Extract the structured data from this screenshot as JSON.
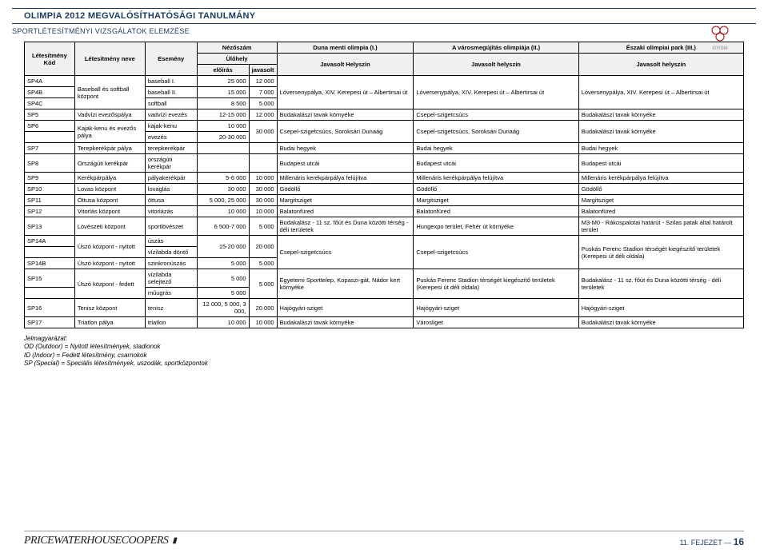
{
  "header": {
    "title": "OLIMPIA 2012 MEGVALÓSÍTHATÓSÁGI TANULMÁNY",
    "subtitle": "SPORTLÉTESÍTMÉNYI VIZSGÁLATOK ELEMZÉSE",
    "logo_label": "GYISM"
  },
  "table": {
    "headers": {
      "col0": "Létesítmény Kód",
      "col1": "Létesítmény neve",
      "col2": "Esemény",
      "nezo": "Nézőszám",
      "ulo": "Ülőhely",
      "eloiras": "előírás",
      "javasolt": "javasolt",
      "duna": "Duna menti olimpia (I.)",
      "varos": "A városmegújítás olimpiája (II.)",
      "eszak": "Északi olimpiai park (III.)",
      "jav_hely": "Javasolt Helyszín",
      "jav_helyszin": "Javasolt helyszín"
    },
    "rows": [
      {
        "kod": "SP4A",
        "nev": "Baseball és softball központ",
        "esemeny": "baseball I.",
        "eloiras": "25 000",
        "javasolt": "12 000",
        "duna": "Lóversenypálya, XIV. Kerepesi út – Albertirsai út",
        "varos": "Lóversenypálya, XIV. Kerepesi út – Albertirsai út",
        "eszak": "Lóversenypálya, XIV. Kerepesi út – Albertirsai út",
        "span_nev": 3,
        "span_loc": 3
      },
      {
        "kod": "SP4B",
        "esemeny": "baseball II.",
        "eloiras": "15 000",
        "javasolt": "7 000"
      },
      {
        "kod": "SP4C",
        "esemeny": "softball",
        "eloiras": "8 500",
        "javasolt": "5 000"
      },
      {
        "kod": "SP5",
        "nev": "Vadvízi evezőspálya",
        "esemeny": "vadvízi evezés",
        "eloiras": "12-15 000",
        "javasolt": "12 000",
        "duna": "Budakalászi tavak környéke",
        "varos": "Csepel-szigetcsúcs",
        "eszak": "Budakalászi tavak környéke"
      },
      {
        "kod": "SP6",
        "nev": "Kajak-kenu és evezős pálya",
        "esemeny": "kajak-kenu",
        "eloiras": "10 000",
        "javasolt": "30 000",
        "duna": "Csepel-szigetcsúcs, Soroksári Dunaág",
        "varos": "Csepel-szigetcsúcs, Soroksári Dunaág",
        "eszak": "Budakalászi tavak környéke",
        "span_nev": 2,
        "span_jav": 2,
        "span_loc": 2
      },
      {
        "kod": "",
        "esemeny": "evezés",
        "eloiras": "20-30 000"
      },
      {
        "kod": "SP7",
        "nev": "Terepkerékpár pálya",
        "esemeny": "terepkerékpár",
        "eloiras": "",
        "javasolt": "",
        "duna": "Budai hegyek",
        "varos": "Budai hegyek",
        "eszak": "Budai hegyek"
      },
      {
        "kod": "SP8",
        "nev": "Országúti kerékpár",
        "esemeny": "országúti kerékpár",
        "eloiras": "",
        "javasolt": "",
        "duna": "Budapest utcái",
        "varos": "Budapest utcái",
        "eszak": "Budapest utcái"
      },
      {
        "kod": "SP9",
        "nev": "Kerékpárpálya",
        "esemeny": "pályakerékpár",
        "eloiras": "5-6 000",
        "javasolt": "10 000",
        "duna": "Millenáris kerékpárpálya felújítva",
        "varos": "Millenáris kerékpárpálya felújítva",
        "eszak": "Millenáris kerékpárpálya felújítva"
      },
      {
        "kod": "SP10",
        "nev": "Lovas központ",
        "esemeny": "lovaglás",
        "eloiras": "30 000",
        "javasolt": "30 000",
        "duna": "Gödöllő",
        "varos": "Gödöllő",
        "eszak": "Gödöllő"
      },
      {
        "kod": "SP11",
        "nev": "Öttusa központ",
        "esemeny": "öttusa",
        "eloiras": "5 000, 25 000",
        "javasolt": "30 000",
        "duna": "Margitsziget",
        "varos": "Margitsziget",
        "eszak": "Margitsziget"
      },
      {
        "kod": "SP12",
        "nev": "Vitorlás központ",
        "esemeny": "vitorlázás",
        "eloiras": "10 000",
        "javasolt": "10 000",
        "duna": "Balatonfüred",
        "varos": "Balatonfüred",
        "eszak": "Balatonfüred"
      },
      {
        "kod": "SP13",
        "nev": "Lövészeti központ",
        "esemeny": "sportlövészet",
        "eloiras": "6 500-7 000",
        "javasolt": "5 000",
        "duna": "Budakalász - 11 sz. főút és Duna közötti térség - déli területek",
        "varos": "Hungexpo terület, Fehér út környéke",
        "eszak": "M3-M0 - Rákospalotai határút - Szilas patak által határolt terület"
      },
      {
        "kod": "SP14A",
        "nev": "Úszó központ - nyitott",
        "esemeny": "úszás",
        "eloiras": "15-20 000",
        "javasolt": "20 000",
        "duna": "Csepel-szigetcsúcs",
        "varos": "Csepel-szigetcsúcs",
        "eszak": "Puskás Ferenc Stadion térségét kiegészítő területek (Kerepesi út déli oldala)",
        "span_nev": 2,
        "span_elo": 2,
        "span_jav": 2,
        "span_loc": 3
      },
      {
        "kod": "",
        "esemeny": "vízilabda döntő"
      },
      {
        "kod": "SP14B",
        "nev": "Úszó központ - nyitott",
        "esemeny": "szinkronúszás",
        "eloiras": "5 000",
        "javasolt": "5 000"
      },
      {
        "kod": "SP15",
        "nev": "Úszó központ - fedett",
        "esemeny": "vízilabda selejtező",
        "eloiras": "5 000",
        "javasolt": "5 000",
        "duna": "Egyetemi Sporttelep, Kopaszi-gát, Nádor kert környéke",
        "varos": "Puskás Ferenc Stadion térségét kiegészítő területek (Kerepesi út déli oldala)",
        "eszak": "Budakalász - 11 sz. főút és Duna közötti térség - déli területek",
        "span_nev": 2,
        "span_jav": 2,
        "span_loc": 2
      },
      {
        "kod": "",
        "esemeny": "műugrás",
        "eloiras": "5 000"
      },
      {
        "kod": "SP16",
        "nev": "Tenisz központ",
        "esemeny": "tenisz",
        "eloiras": "12 000, 5 000, 3 000,",
        "javasolt": "20 000",
        "duna": "Hajógyári-sziget",
        "varos": "Hajógyári-sziget",
        "eszak": "Hajógyári-sziget"
      },
      {
        "kod": "SP17",
        "nev": "Triatlon pálya",
        "esemeny": "triatlon",
        "eloiras": "10 000",
        "javasolt": "10 000",
        "duna": "Budakalászi tavak környéke",
        "varos": "Városliget",
        "eszak": "Budakalászi tavak környéke"
      }
    ]
  },
  "legend": {
    "title": "Jelmagyarázat:",
    "l1": "OD (Outdoor) = Nyitott létesítmények, stadionok",
    "l2": "ID (Indoor) = Fedett létesítmény, csarnokok",
    "l3": "SP (Special) = Speciális létesítmények, uszodák, sportközpontok"
  },
  "footer": {
    "brand": "PRICEWATERHOUSE",
    "brand2": "COOPERS",
    "chapter": "11. FEJEZET",
    "page": "16"
  },
  "colors": {
    "header_border": "#1a3a5c",
    "text_header": "#1a3a5c",
    "table_border": "#000000",
    "th_bg": "#f0f0f0"
  }
}
